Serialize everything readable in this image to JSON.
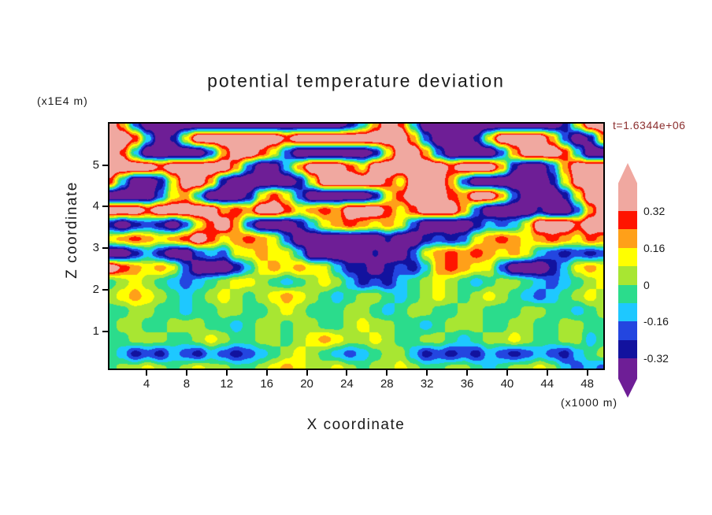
{
  "title": "potential temperature deviation",
  "time_label": "t=1.6344e+06",
  "axes": {
    "x": {
      "label": "X coordinate",
      "unit": "(x1000 m)",
      "range": [
        0.3,
        49.6
      ],
      "ticks": [
        4,
        8,
        12,
        16,
        20,
        24,
        28,
        32,
        36,
        40,
        44,
        48
      ]
    },
    "z": {
      "label": "Z coordinate",
      "unit": "(x1E4 m)",
      "range": [
        0.1,
        6.0
      ],
      "ticks": [
        1,
        2,
        3,
        4,
        5
      ]
    }
  },
  "colorbar": {
    "labels": [
      "0.32",
      "0.16",
      "0",
      "-0.16",
      "-0.32"
    ],
    "segment_colors_top_to_bottom": [
      "#FF1400",
      "#FFA019",
      "#FFFF00",
      "#A8E632",
      "#2BDC8C",
      "#1EC8FF",
      "#2346E0",
      "#12129E"
    ],
    "arrow_top_color": "#F0A8A0",
    "arrow_bottom_color": "#6E1E96"
  },
  "chart_data": {
    "type": "heatmap",
    "title": "potential temperature deviation",
    "annotation": "t=1.6344e+06",
    "xlabel": "X coordinate (x1000 m)",
    "ylabel": "Z coordinate (x1E4 m)",
    "x_range": [
      0.3,
      49.6
    ],
    "z_range": [
      0.1,
      6.0
    ],
    "levels": [
      -0.32,
      -0.24,
      -0.16,
      -0.08,
      0,
      0.08,
      0.16,
      0.24,
      0.32
    ],
    "level_colors_low_to_high": [
      "#6E1E96",
      "#12129E",
      "#2346E0",
      "#1EC8FF",
      "#2BDC8C",
      "#A8E632",
      "#FFFF00",
      "#FFA019",
      "#FF1400",
      "#F0A8A0"
    ],
    "grid_rows_top_to_bottom": [
      [
        0.45,
        0.2,
        -0.2,
        -0.45,
        -0.45,
        -0.45,
        -0.45,
        -0.45,
        -0.45,
        -0.45,
        -0.45,
        -0.45,
        -0.45,
        -0.45,
        -0.45,
        -0.45,
        -0.45,
        -0.45,
        -0.45,
        -0.3,
        -0.1,
        0.2,
        0.45,
        0.3,
        -0.1,
        -0.45,
        -0.45,
        -0.45,
        -0.45,
        -0.45,
        -0.45,
        -0.45,
        -0.45,
        -0.45,
        -0.45,
        -0.45,
        -0.3,
        0.1,
        0.45,
        0.45
      ],
      [
        0.45,
        0.45,
        0.3,
        -0.1,
        -0.45,
        -0.3,
        0.1,
        0.45,
        0.45,
        0.45,
        0.45,
        0.45,
        0.45,
        0.45,
        0.3,
        0.45,
        0.45,
        0.45,
        0.45,
        0.45,
        0.45,
        0.45,
        0.45,
        0.45,
        0.2,
        -0.2,
        -0.45,
        -0.45,
        -0.45,
        -0.3,
        0.1,
        0.45,
        0.45,
        0.45,
        0.45,
        0.2,
        -0.2,
        -0.45,
        -0.3,
        0.2
      ],
      [
        0.45,
        0.3,
        -0.1,
        -0.45,
        -0.45,
        -0.45,
        -0.45,
        -0.45,
        -0.2,
        0.2,
        0.45,
        0.45,
        0.3,
        0.1,
        -0.2,
        -0.45,
        -0.45,
        -0.45,
        -0.45,
        -0.45,
        -0.45,
        -0.3,
        0.1,
        0.45,
        0.45,
        0.2,
        -0.2,
        -0.45,
        -0.45,
        -0.45,
        -0.45,
        -0.2,
        0.2,
        0.45,
        0.45,
        0.45,
        0.3,
        -0.1,
        -0.45,
        -0.45
      ],
      [
        0.45,
        0.45,
        0.45,
        0.45,
        0.3,
        0.45,
        0.45,
        0.45,
        0.45,
        0.45,
        0.2,
        -0.2,
        -0.45,
        -0.4,
        -0.1,
        0.2,
        0.45,
        0.45,
        0.45,
        0.28,
        0.12,
        0.45,
        0.45,
        0.45,
        0.45,
        0.45,
        0.45,
        0.3,
        0.45,
        0.45,
        0.45,
        0.2,
        -0.3,
        -0.45,
        -0.45,
        -0.2,
        0.2,
        0.45,
        0.45,
        0.45
      ],
      [
        0.3,
        -0.1,
        -0.45,
        -0.45,
        -0.3,
        0.1,
        0.45,
        0.45,
        0.2,
        -0.3,
        -0.45,
        -0.45,
        -0.45,
        -0.45,
        -0.45,
        -0.3,
        0.1,
        0.45,
        0.45,
        0.45,
        0.45,
        0.45,
        0.3,
        0.1,
        0.45,
        0.45,
        0.45,
        0.2,
        -0.2,
        -0.45,
        -0.45,
        -0.45,
        -0.45,
        -0.45,
        -0.45,
        -0.3,
        0.1,
        0.4,
        0.45,
        0.45
      ],
      [
        -0.45,
        -0.45,
        -0.45,
        -0.45,
        -0.2,
        0.12,
        0.2,
        -0.1,
        -0.45,
        -0.45,
        -0.45,
        -0.3,
        0.1,
        0.28,
        0.12,
        -0.2,
        -0.45,
        -0.45,
        -0.45,
        -0.45,
        -0.45,
        -0.3,
        0.1,
        0.3,
        0.45,
        0.45,
        0.45,
        0.28,
        0.2,
        0.45,
        0.45,
        0.2,
        -0.2,
        -0.45,
        -0.45,
        -0.45,
        -0.3,
        0.1,
        0.45,
        0.45
      ],
      [
        0.45,
        0.45,
        0.45,
        0.3,
        0.45,
        0.45,
        0.45,
        0.45,
        0.45,
        0.2,
        0.28,
        0.2,
        0.45,
        0.45,
        0.3,
        0.12,
        0.2,
        0.28,
        0.2,
        0.45,
        0.45,
        0.45,
        0.28,
        0.12,
        0.28,
        0.45,
        0.45,
        0.45,
        0.2,
        -0.2,
        -0.45,
        -0.45,
        -0.45,
        -0.45,
        -0.3,
        -0.45,
        -0.45,
        -0.2,
        0.2,
        0.45
      ],
      [
        -0.28,
        -0.45,
        -0.28,
        -0.2,
        -0.28,
        -0.45,
        -0.2,
        0.1,
        0.3,
        0.45,
        0.2,
        -0.2,
        -0.45,
        -0.45,
        -0.45,
        -0.3,
        -0.1,
        0.12,
        0.2,
        0.28,
        0.2,
        0.12,
        0.2,
        0.1,
        -0.2,
        -0.45,
        -0.45,
        -0.45,
        -0.45,
        -0.3,
        -0.12,
        -0.2,
        -0.12,
        0.1,
        0.45,
        0.45,
        0.45,
        0.3,
        0.45,
        0.45
      ],
      [
        0.12,
        0.2,
        0.28,
        0.2,
        0.12,
        0.2,
        0.28,
        0.45,
        0.28,
        0.12,
        0.2,
        0.28,
        0.2,
        0.1,
        -0.2,
        -0.45,
        -0.45,
        -0.45,
        -0.45,
        -0.45,
        -0.45,
        -0.45,
        -0.3,
        -0.45,
        -0.45,
        -0.28,
        -0.2,
        -0.28,
        -0.2,
        0.1,
        0.2,
        0.28,
        0.2,
        0.12,
        0.2,
        0.28,
        0.2,
        0.12,
        0.28,
        0.2
      ],
      [
        -0.45,
        -0.45,
        -0.28,
        -0.12,
        -0.28,
        -0.45,
        -0.45,
        -0.2,
        -0.12,
        -0.2,
        0.1,
        0.12,
        0.2,
        0.12,
        0.1,
        -0.1,
        -0.45,
        -0.45,
        -0.45,
        -0.45,
        -0.45,
        -0.3,
        -0.45,
        -0.45,
        -0.2,
        0.1,
        0.2,
        0.28,
        0.2,
        0.28,
        0.2,
        0.12,
        0.2,
        0.1,
        -0.12,
        -0.2,
        -0.28,
        -0.2,
        -0.28,
        -0.2
      ],
      [
        0.45,
        0.3,
        0.2,
        0.12,
        0.2,
        0.1,
        -0.2,
        -0.45,
        -0.45,
        -0.45,
        -0.3,
        -0.1,
        0.12,
        0.2,
        0.12,
        0.2,
        0.12,
        0.1,
        -0.12,
        -0.28,
        -0.28,
        -0.45,
        -0.28,
        -0.2,
        -0.28,
        -0.1,
        0.2,
        0.28,
        0.2,
        0.12,
        0.1,
        -0.2,
        -0.45,
        -0.45,
        -0.45,
        -0.3,
        -0.1,
        0.12,
        0.2,
        0.12
      ],
      [
        -0.04,
        0.04,
        0.12,
        0.04,
        -0.04,
        -0.12,
        -0.2,
        -0.12,
        -0.04,
        0.04,
        0.12,
        0.12,
        0.04,
        -0.04,
        -0.12,
        -0.04,
        0.04,
        0.12,
        0.04,
        -0.12,
        -0.28,
        -0.2,
        -0.28,
        -0.12,
        -0.04,
        0.04,
        0.12,
        0.04,
        -0.04,
        -0.12,
        -0.04,
        0.04,
        0.04,
        -0.04,
        -0.12,
        -0.2,
        -0.12,
        -0.04,
        0.04,
        0.12
      ],
      [
        0.04,
        0.12,
        0.2,
        0.12,
        0.04,
        -0.04,
        -0.12,
        -0.04,
        0.04,
        0.12,
        0.04,
        -0.04,
        0.04,
        0.12,
        0.2,
        0.12,
        0.04,
        -0.04,
        -0.12,
        -0.04,
        0.04,
        0.04,
        -0.04,
        -0.12,
        -0.04,
        0.04,
        0.12,
        0.04,
        -0.04,
        0.04,
        0.12,
        0.04,
        -0.04,
        -0.12,
        -0.2,
        -0.12,
        -0.04,
        0.04,
        0.12,
        0.04
      ],
      [
        -0.04,
        -0.04,
        0.04,
        0.04,
        -0.04,
        -0.04,
        -0.12,
        -0.04,
        -0.04,
        0.04,
        0.04,
        -0.04,
        -0.04,
        0.04,
        0.12,
        0.04,
        -0.04,
        -0.04,
        -0.04,
        0.04,
        0.04,
        -0.04,
        -0.12,
        -0.04,
        0.04,
        0.04,
        -0.04,
        -0.04,
        0.04,
        0.04,
        -0.04,
        -0.04,
        -0.04,
        0.04,
        0.04,
        -0.04,
        -0.04,
        -0.12,
        -0.04,
        0.04
      ],
      [
        -0.04,
        0.04,
        0.04,
        -0.04,
        -0.04,
        0.04,
        0.04,
        0.04,
        -0.04,
        -0.04,
        -0.12,
        -0.04,
        0.04,
        0.04,
        -0.04,
        0.04,
        0.04,
        -0.04,
        -0.04,
        0.04,
        0.12,
        0.04,
        0.04,
        -0.04,
        -0.04,
        -0.12,
        -0.04,
        0.04,
        0.04,
        0.04,
        -0.04,
        -0.04,
        0.04,
        0.04,
        -0.04,
        -0.04,
        0.04,
        0.04,
        -0.04,
        -0.04
      ],
      [
        -0.04,
        -0.04,
        0.04,
        0.04,
        0.04,
        -0.04,
        -0.04,
        0.04,
        0.12,
        0.04,
        -0.04,
        -0.04,
        0.04,
        0.04,
        -0.04,
        0.04,
        0.12,
        0.2,
        0.12,
        0.04,
        0.04,
        0.12,
        0.04,
        -0.04,
        -0.04,
        0.04,
        0.04,
        -0.04,
        -0.12,
        -0.04,
        0.04,
        0.04,
        0.12,
        0.04,
        -0.04,
        -0.04,
        0.04,
        0.04,
        -0.12,
        -0.04
      ],
      [
        -0.04,
        -0.12,
        -0.28,
        -0.2,
        -0.28,
        -0.12,
        -0.2,
        -0.28,
        -0.12,
        -0.2,
        -0.28,
        -0.2,
        -0.12,
        -0.04,
        0.04,
        0.12,
        0.04,
        -0.04,
        -0.12,
        -0.2,
        -0.12,
        -0.04,
        0.04,
        0.04,
        -0.12,
        -0.28,
        -0.2,
        -0.28,
        -0.2,
        -0.28,
        -0.12,
        -0.2,
        -0.28,
        -0.2,
        -0.12,
        -0.2,
        -0.28,
        -0.12,
        -0.04,
        0.04
      ],
      [
        -0.04,
        0.04,
        0.04,
        0.12,
        0.04,
        -0.04,
        0.04,
        0.12,
        0.04,
        0.04,
        -0.04,
        -0.04,
        0.04,
        0.12,
        0.2,
        0.12,
        0.04,
        0.04,
        0.12,
        0.04,
        -0.04,
        0.04,
        0.04,
        0.12,
        0.04,
        -0.04,
        -0.04,
        0.04,
        0.04,
        -0.04,
        -0.12,
        -0.04,
        0.04,
        0.04,
        0.12,
        0.04,
        -0.12,
        -0.2,
        -0.12,
        -0.2
      ]
    ]
  }
}
